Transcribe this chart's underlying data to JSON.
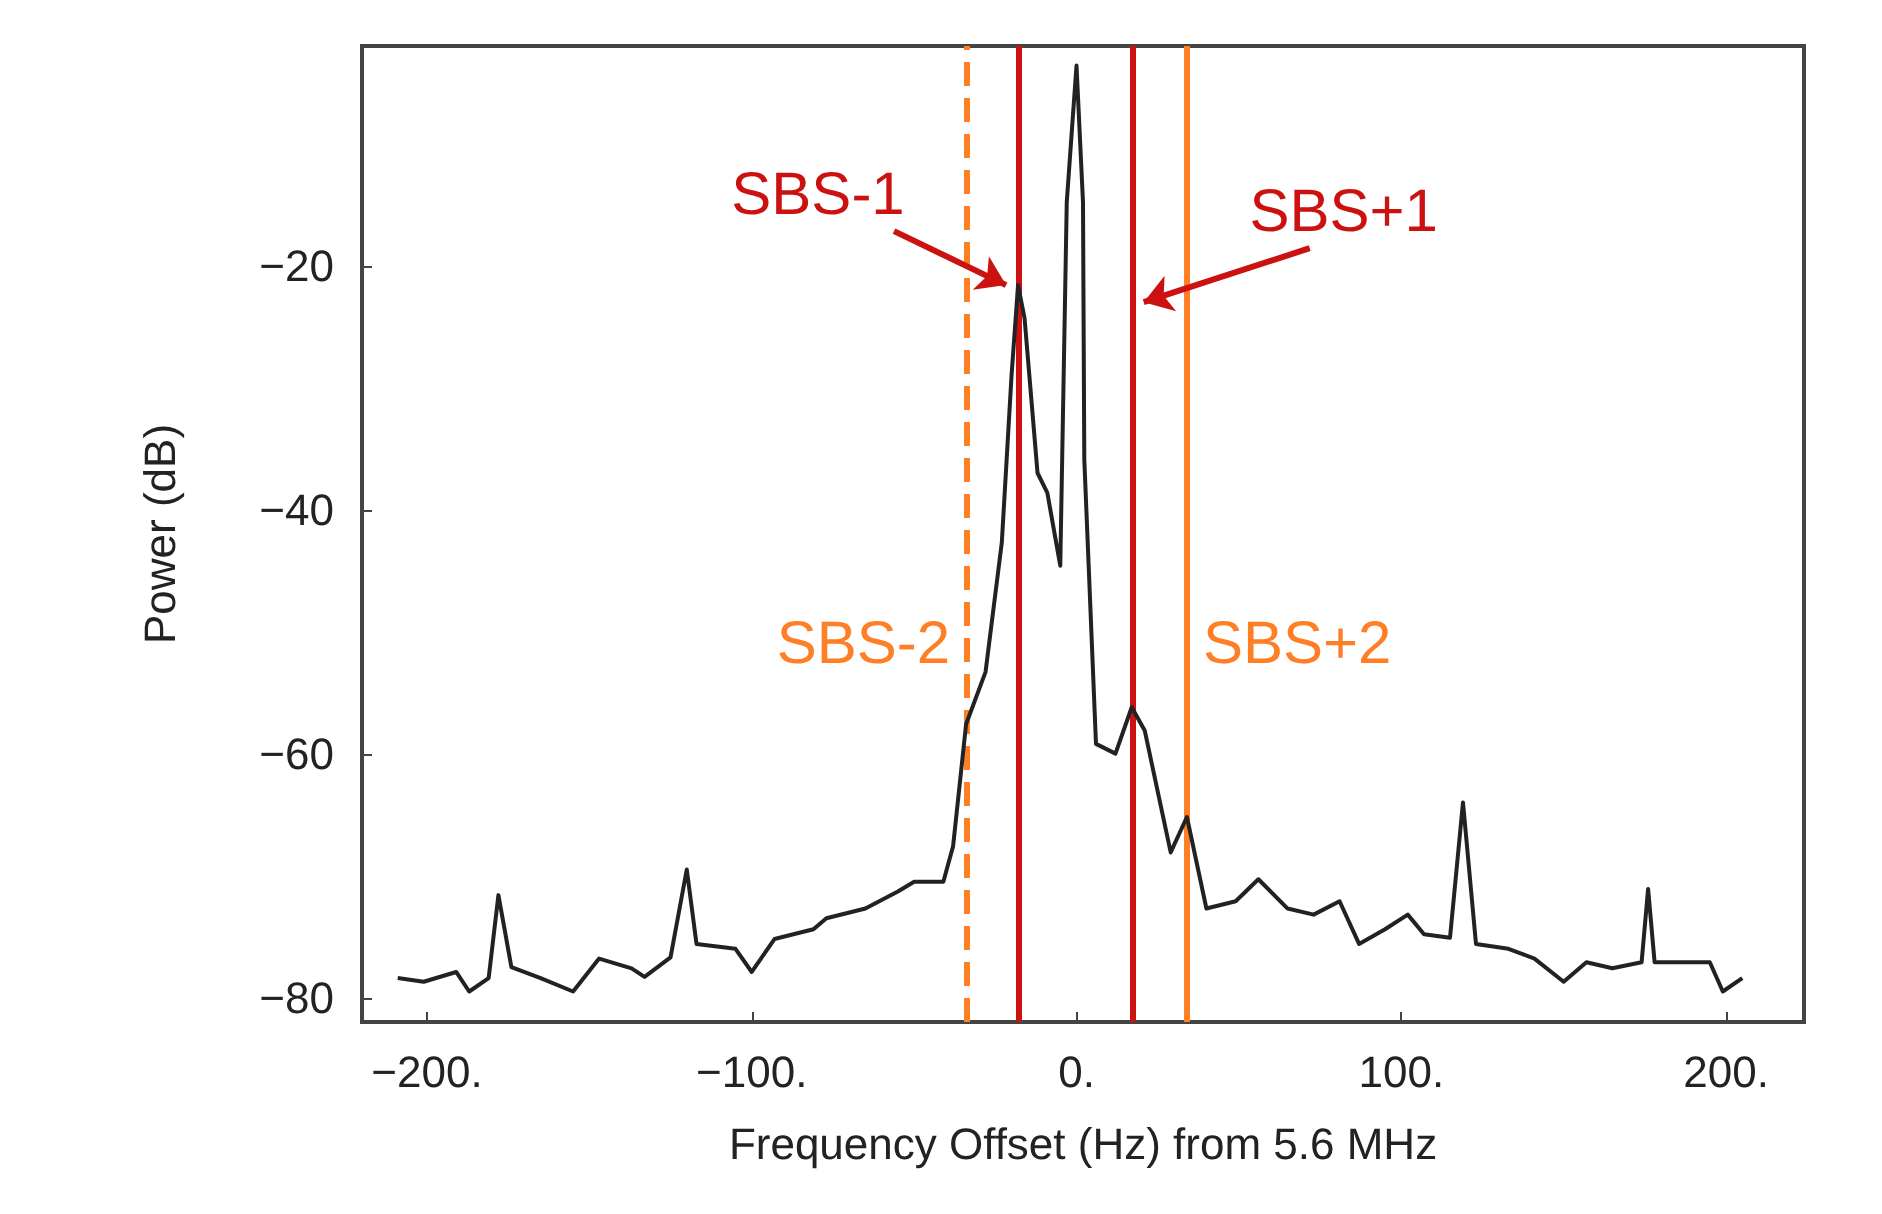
{
  "chart_data": {
    "type": "line",
    "xlabel": "Frequency Offset (Hz) from 5.6 MHz",
    "ylabel": "Power (dB)",
    "xlim": [
      -220,
      224
    ],
    "ylim": [
      -82,
      -2
    ],
    "xticks": [
      {
        "value": -200,
        "label": "−200."
      },
      {
        "value": -100,
        "label": "−100."
      },
      {
        "value": 0,
        "label": "0."
      },
      {
        "value": 100,
        "label": "100."
      },
      {
        "value": 200,
        "label": "200."
      }
    ],
    "yticks": [
      {
        "value": -80,
        "label": "−80"
      },
      {
        "value": -60,
        "label": "−60"
      },
      {
        "value": -40,
        "label": "−40"
      },
      {
        "value": -20,
        "label": "−20"
      }
    ],
    "grid": false,
    "marker": "none",
    "line_style": "solid",
    "series": [
      {
        "color": "#222222",
        "x": [
          -209,
          -201,
          -191,
          -187,
          -181,
          -178,
          -174,
          -165,
          -155,
          -147,
          -137,
          -133,
          -125,
          -120,
          -117,
          -105,
          -100,
          -93,
          -81,
          -77,
          -65,
          -55,
          -50,
          -41,
          -38,
          -34,
          -28,
          -23,
          -20,
          -18,
          -16,
          -12,
          -9,
          -5,
          -3,
          0,
          2,
          2.4,
          6,
          12,
          17,
          21,
          29,
          34,
          40,
          49,
          56,
          65,
          73,
          81,
          87,
          95,
          102,
          107,
          115,
          119,
          123,
          133,
          141,
          150,
          157,
          165,
          174,
          176,
          178,
          187,
          195,
          199,
          205
        ],
        "values": [
          -78.4,
          -78.7,
          -77.9,
          -79.5,
          -78.4,
          -71.6,
          -77.5,
          -78.4,
          -79.5,
          -76.8,
          -77.6,
          -78.3,
          -76.7,
          -69.5,
          -75.6,
          -76,
          -77.9,
          -75.2,
          -74.4,
          -73.5,
          -72.7,
          -71.3,
          -70.5,
          -70.5,
          -67.6,
          -57.6,
          -53.3,
          -42.7,
          -29,
          -21.6,
          -24.3,
          -37,
          -38.6,
          -44.6,
          -14.8,
          -3.6,
          -14.8,
          -35.9,
          -59.2,
          -60,
          -56.2,
          -58.1,
          -68.1,
          -65.2,
          -72.7,
          -72.1,
          -70.3,
          -72.7,
          -73.2,
          -72.1,
          -75.6,
          -74.4,
          -73.2,
          -74.8,
          -75.1,
          -64,
          -75.6,
          -76,
          -76.8,
          -78.7,
          -77.1,
          -77.6,
          -77.1,
          -71.1,
          -77.1,
          -77.1,
          -77.1,
          -79.5,
          -78.4
        ]
      }
    ],
    "ref_lines": [
      {
        "axis": "x",
        "value": -34,
        "color": "#ff7f27",
        "line_style": "dashed"
      },
      {
        "axis": "x",
        "value": -18,
        "color": "#cc1111",
        "line_style": "solid"
      },
      {
        "axis": "x",
        "value": 17,
        "color": "#cc1111",
        "line_style": "solid"
      },
      {
        "axis": "x",
        "value": 34,
        "color": "#ff7f27",
        "line_style": "solid"
      }
    ],
    "annotations": [
      {
        "text": "SBS-1",
        "x": -18,
        "y": -21.6
      },
      {
        "text": "SBS+1",
        "x": 17,
        "y": -23
      },
      {
        "text": "SBS-2",
        "x": -34,
        "y": -51
      },
      {
        "text": "SBS+2",
        "x": 34,
        "y": -51
      }
    ]
  }
}
